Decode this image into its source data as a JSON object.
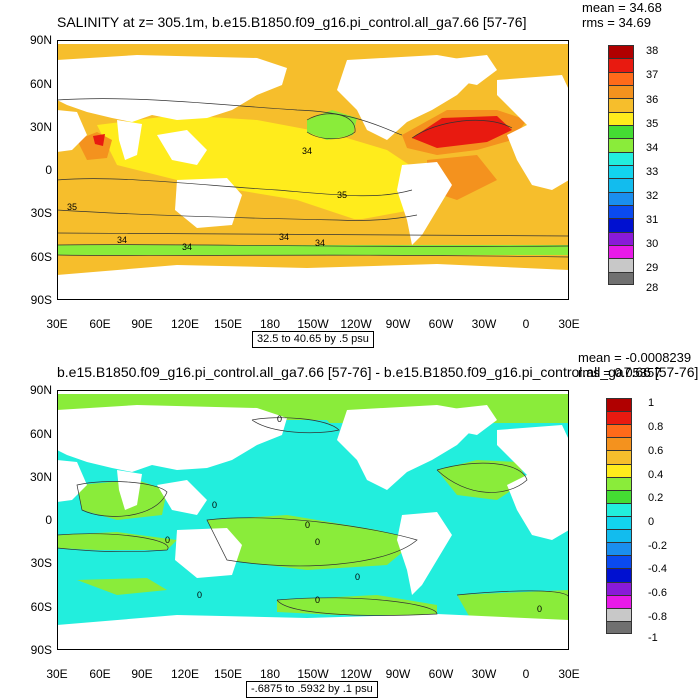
{
  "panel1": {
    "title": "SALINITY at z= 305.1m, b.e15.B1850.f09_g16.pi_control.all_ga7.66 [57-76]",
    "mean_text": "mean = 34.68",
    "rms_text": "rms = 34.69",
    "lat_labels": [
      "90N",
      "60N",
      "30N",
      "0",
      "30S",
      "60S",
      "90S"
    ],
    "lon_labels": [
      "30E",
      "60E",
      "90E",
      "120E",
      "150E",
      "180",
      "150W",
      "120W",
      "90W",
      "60W",
      "30W",
      "0",
      "30E"
    ],
    "range_text": "32.5 to 40.65 by .5 psu",
    "contour_labels": [
      "34",
      "35",
      "35",
      "34",
      "34",
      "34",
      "34"
    ],
    "colorbar_labels": [
      "38",
      "37",
      "36",
      "35",
      "34",
      "33",
      "32",
      "31",
      "30",
      "29",
      "28"
    ],
    "colorbar_colors": [
      "#b00000",
      "#e81a10",
      "#ff6a1a",
      "#f4921e",
      "#f6be2c",
      "#ffec1c",
      "#44dd33",
      "#8aec3a",
      "#22eedd",
      "#12d4ee",
      "#12bcee",
      "#1a8eee",
      "#0a4af0",
      "#0010d0",
      "#8a1ad8",
      "#e81ae8",
      "#c8c8c8",
      "#707070"
    ]
  },
  "panel2": {
    "title": "b.e15.B1850.f09_g16.pi_control.all_ga7.66 [57-76] - b.e15.B1850.f09_g16.pi_control.all_ga7.66 [57-76]",
    "mean_text": "mean = -0.0008239",
    "rms_text": "rms = 0.05357",
    "lat_labels": [
      "90N",
      "60N",
      "30N",
      "0",
      "30S",
      "60S",
      "90S"
    ],
    "lon_labels": [
      "30E",
      "60E",
      "90E",
      "120E",
      "150E",
      "180",
      "150W",
      "120W",
      "90W",
      "60W",
      "30W",
      "0",
      "30E"
    ],
    "range_text": "-.6875 to .5932 by .1 psu",
    "contour_labels": [
      "0",
      "0",
      "0",
      "0",
      "0",
      "0",
      "0",
      "0",
      "0"
    ],
    "colorbar_labels": [
      "1",
      "0.8",
      "0.6",
      "0.4",
      "0.2",
      "0",
      "-0.2",
      "-0.4",
      "-0.6",
      "-0.8",
      "-1"
    ],
    "colorbar_colors": [
      "#b00000",
      "#e81a10",
      "#ff6a1a",
      "#f4921e",
      "#f6be2c",
      "#ffec1c",
      "#8aec3a",
      "#44dd33",
      "#22eedd",
      "#12d4ee",
      "#12bcee",
      "#1a8eee",
      "#0a4af0",
      "#0010d0",
      "#8a1ad8",
      "#e81ae8",
      "#c8c8c8",
      "#707070"
    ]
  }
}
